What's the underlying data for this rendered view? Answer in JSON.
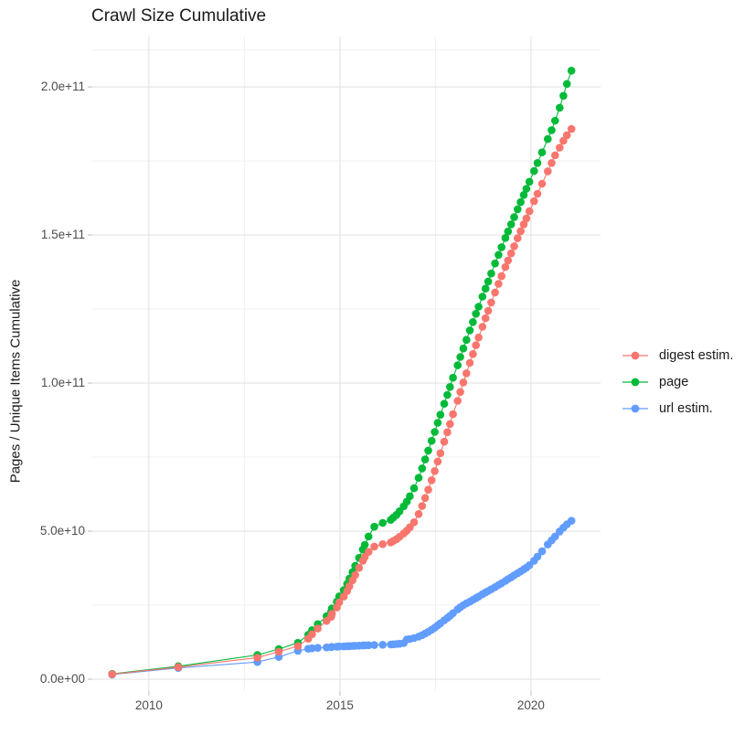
{
  "title": "Crawl Size Cumulative",
  "axes": {
    "y_label": "Pages / Unique Items Cumulative",
    "x_ticks": {
      "labels": [
        "2010",
        "2015",
        "2020"
      ],
      "years": [
        2010,
        2015,
        2020
      ]
    },
    "y_ticks": {
      "labels": [
        "0.0e+00",
        "5.0e+10",
        "1.0e+11",
        "1.5e+11",
        "2.0e+11"
      ],
      "values_billions": [
        0,
        50,
        100,
        150,
        200
      ]
    }
  },
  "legend": {
    "position": "right",
    "order": [
      "digest estim.",
      "page",
      "url estim."
    ]
  },
  "colors": {
    "digest": "#F8766D",
    "page": "#00BA38",
    "url": "#619CFF",
    "grid_major": "#E3E3E3",
    "grid_minor": "#F1F1F1",
    "tick_mark": "#c9c9c9",
    "tick_text": "#4d4d4d",
    "text": "#1a1a1a",
    "panel_background": "#FFFFFF"
  },
  "chart_data": {
    "type": "scatter",
    "note": "cumulative crawl size per crawl; y values in billions (1e9) of pages / unique items",
    "title": "Crawl Size Cumulative",
    "xlabel": "",
    "ylabel": "Pages / Unique Items Cumulative",
    "xlim": [
      2008.52,
      2021.82
    ],
    "ylim_billions": [
      -4,
      217
    ],
    "grid": {
      "x_major_years": [
        2010,
        2015,
        2020
      ],
      "x_minor_years": [
        2012.5,
        2017.5
      ],
      "y_major_billions": [
        0,
        50,
        100,
        150,
        200
      ],
      "y_minor_billions": [
        25,
        75,
        125,
        175,
        212.5
      ]
    },
    "marker_radius": 4.3,
    "x": [
      2009.04,
      2010.77,
      2012.84,
      2013.4,
      2013.9,
      2014.17,
      2014.27,
      2014.42,
      2014.65,
      2014.77,
      2014.79,
      2014.92,
      2014.98,
      2015.1,
      2015.19,
      2015.25,
      2015.33,
      2015.4,
      2015.5,
      2015.6,
      2015.65,
      2015.75,
      2015.9,
      2016.12,
      2016.33,
      2016.4,
      2016.48,
      2016.56,
      2016.67,
      2016.75,
      2016.83,
      2016.94,
      2017.06,
      2017.15,
      2017.23,
      2017.31,
      2017.4,
      2017.48,
      2017.56,
      2017.63,
      2017.73,
      2017.81,
      2017.88,
      2017.96,
      2018.08,
      2018.15,
      2018.23,
      2018.31,
      2018.4,
      2018.48,
      2018.56,
      2018.63,
      2018.73,
      2018.81,
      2018.88,
      2018.96,
      2019.06,
      2019.15,
      2019.23,
      2019.33,
      2019.4,
      2019.48,
      2019.56,
      2019.65,
      2019.73,
      2019.81,
      2019.88,
      2019.96,
      2020.08,
      2020.17,
      2020.29,
      2020.44,
      2020.54,
      2020.63,
      2020.75,
      2020.85,
      2020.94,
      2021.06
    ],
    "series": [
      {
        "name": "digest estim.",
        "color": "#F8766D",
        "z": 3,
        "values": [
          1.7,
          4.1,
          7.3,
          9.3,
          11.2,
          13.7,
          15.2,
          17.1,
          19.7,
          21.1,
          22.1,
          24.2,
          26.0,
          27.9,
          29.8,
          31.4,
          33.4,
          35.2,
          37.6,
          40.0,
          41.3,
          43.0,
          44.8,
          45.6,
          46.2,
          46.7,
          47.3,
          48.1,
          49.2,
          50.2,
          51.3,
          53.0,
          55.8,
          58.5,
          61.2,
          64.0,
          67.2,
          70.3,
          73.5,
          76.3,
          80.2,
          83.4,
          86.2,
          89.5,
          94.0,
          97.0,
          100.2,
          103.3,
          106.8,
          109.8,
          112.8,
          115.4,
          119.0,
          121.9,
          124.4,
          127.2,
          130.6,
          133.5,
          136.1,
          139.2,
          141.4,
          143.8,
          146.2,
          148.9,
          151.3,
          153.6,
          155.6,
          158.0,
          161.4,
          163.9,
          167.3,
          171.5,
          174.3,
          176.9,
          179.5,
          181.8,
          183.7,
          185.8
        ]
      },
      {
        "name": "page",
        "color": "#00BA38",
        "z": 1,
        "values": [
          1.8,
          4.4,
          8.2,
          10.2,
          12.3,
          15.0,
          16.6,
          18.6,
          21.3,
          22.8,
          23.9,
          26.2,
          28.0,
          30.1,
          32.2,
          34.0,
          36.2,
          38.3,
          41.0,
          43.8,
          45.4,
          48.2,
          51.5,
          52.8,
          53.8,
          54.6,
          55.5,
          56.7,
          58.4,
          60.0,
          61.8,
          64.5,
          68.0,
          71.2,
          74.2,
          77.2,
          80.5,
          83.5,
          86.6,
          89.3,
          93.0,
          96.0,
          98.7,
          101.8,
          106.0,
          108.8,
          111.7,
          114.6,
          117.8,
          120.6,
          123.4,
          125.8,
          129.2,
          131.9,
          134.3,
          137.0,
          140.4,
          143.3,
          145.9,
          149.0,
          151.2,
          153.6,
          156.0,
          158.7,
          161.1,
          163.5,
          165.6,
          168.0,
          171.6,
          174.3,
          177.9,
          182.4,
          185.4,
          188.6,
          193.0,
          197.0,
          201.0,
          205.5
        ]
      },
      {
        "name": "url estim.",
        "color": "#619CFF",
        "z": 2,
        "values": [
          1.6,
          3.8,
          5.8,
          7.5,
          9.6,
          10.3,
          10.45,
          10.6,
          10.75,
          10.85,
          10.9,
          11.0,
          11.05,
          11.1,
          11.15,
          11.2,
          11.25,
          11.3,
          11.35,
          11.4,
          11.45,
          11.5,
          11.55,
          11.65,
          11.75,
          11.8,
          11.9,
          12.0,
          12.2,
          13.4,
          13.6,
          13.9,
          14.4,
          14.9,
          15.4,
          16.0,
          16.7,
          17.4,
          18.2,
          18.9,
          19.9,
          20.7,
          21.4,
          22.3,
          23.6,
          24.3,
          25.0,
          25.6,
          26.2,
          26.8,
          27.4,
          27.9,
          28.7,
          29.3,
          29.8,
          30.4,
          31.1,
          31.8,
          32.4,
          33.2,
          33.8,
          34.4,
          35.1,
          35.8,
          36.4,
          37.1,
          37.7,
          38.5,
          40.0,
          41.4,
          43.2,
          45.5,
          46.9,
          48.2,
          49.9,
          51.2,
          52.3,
          53.5
        ]
      }
    ]
  }
}
